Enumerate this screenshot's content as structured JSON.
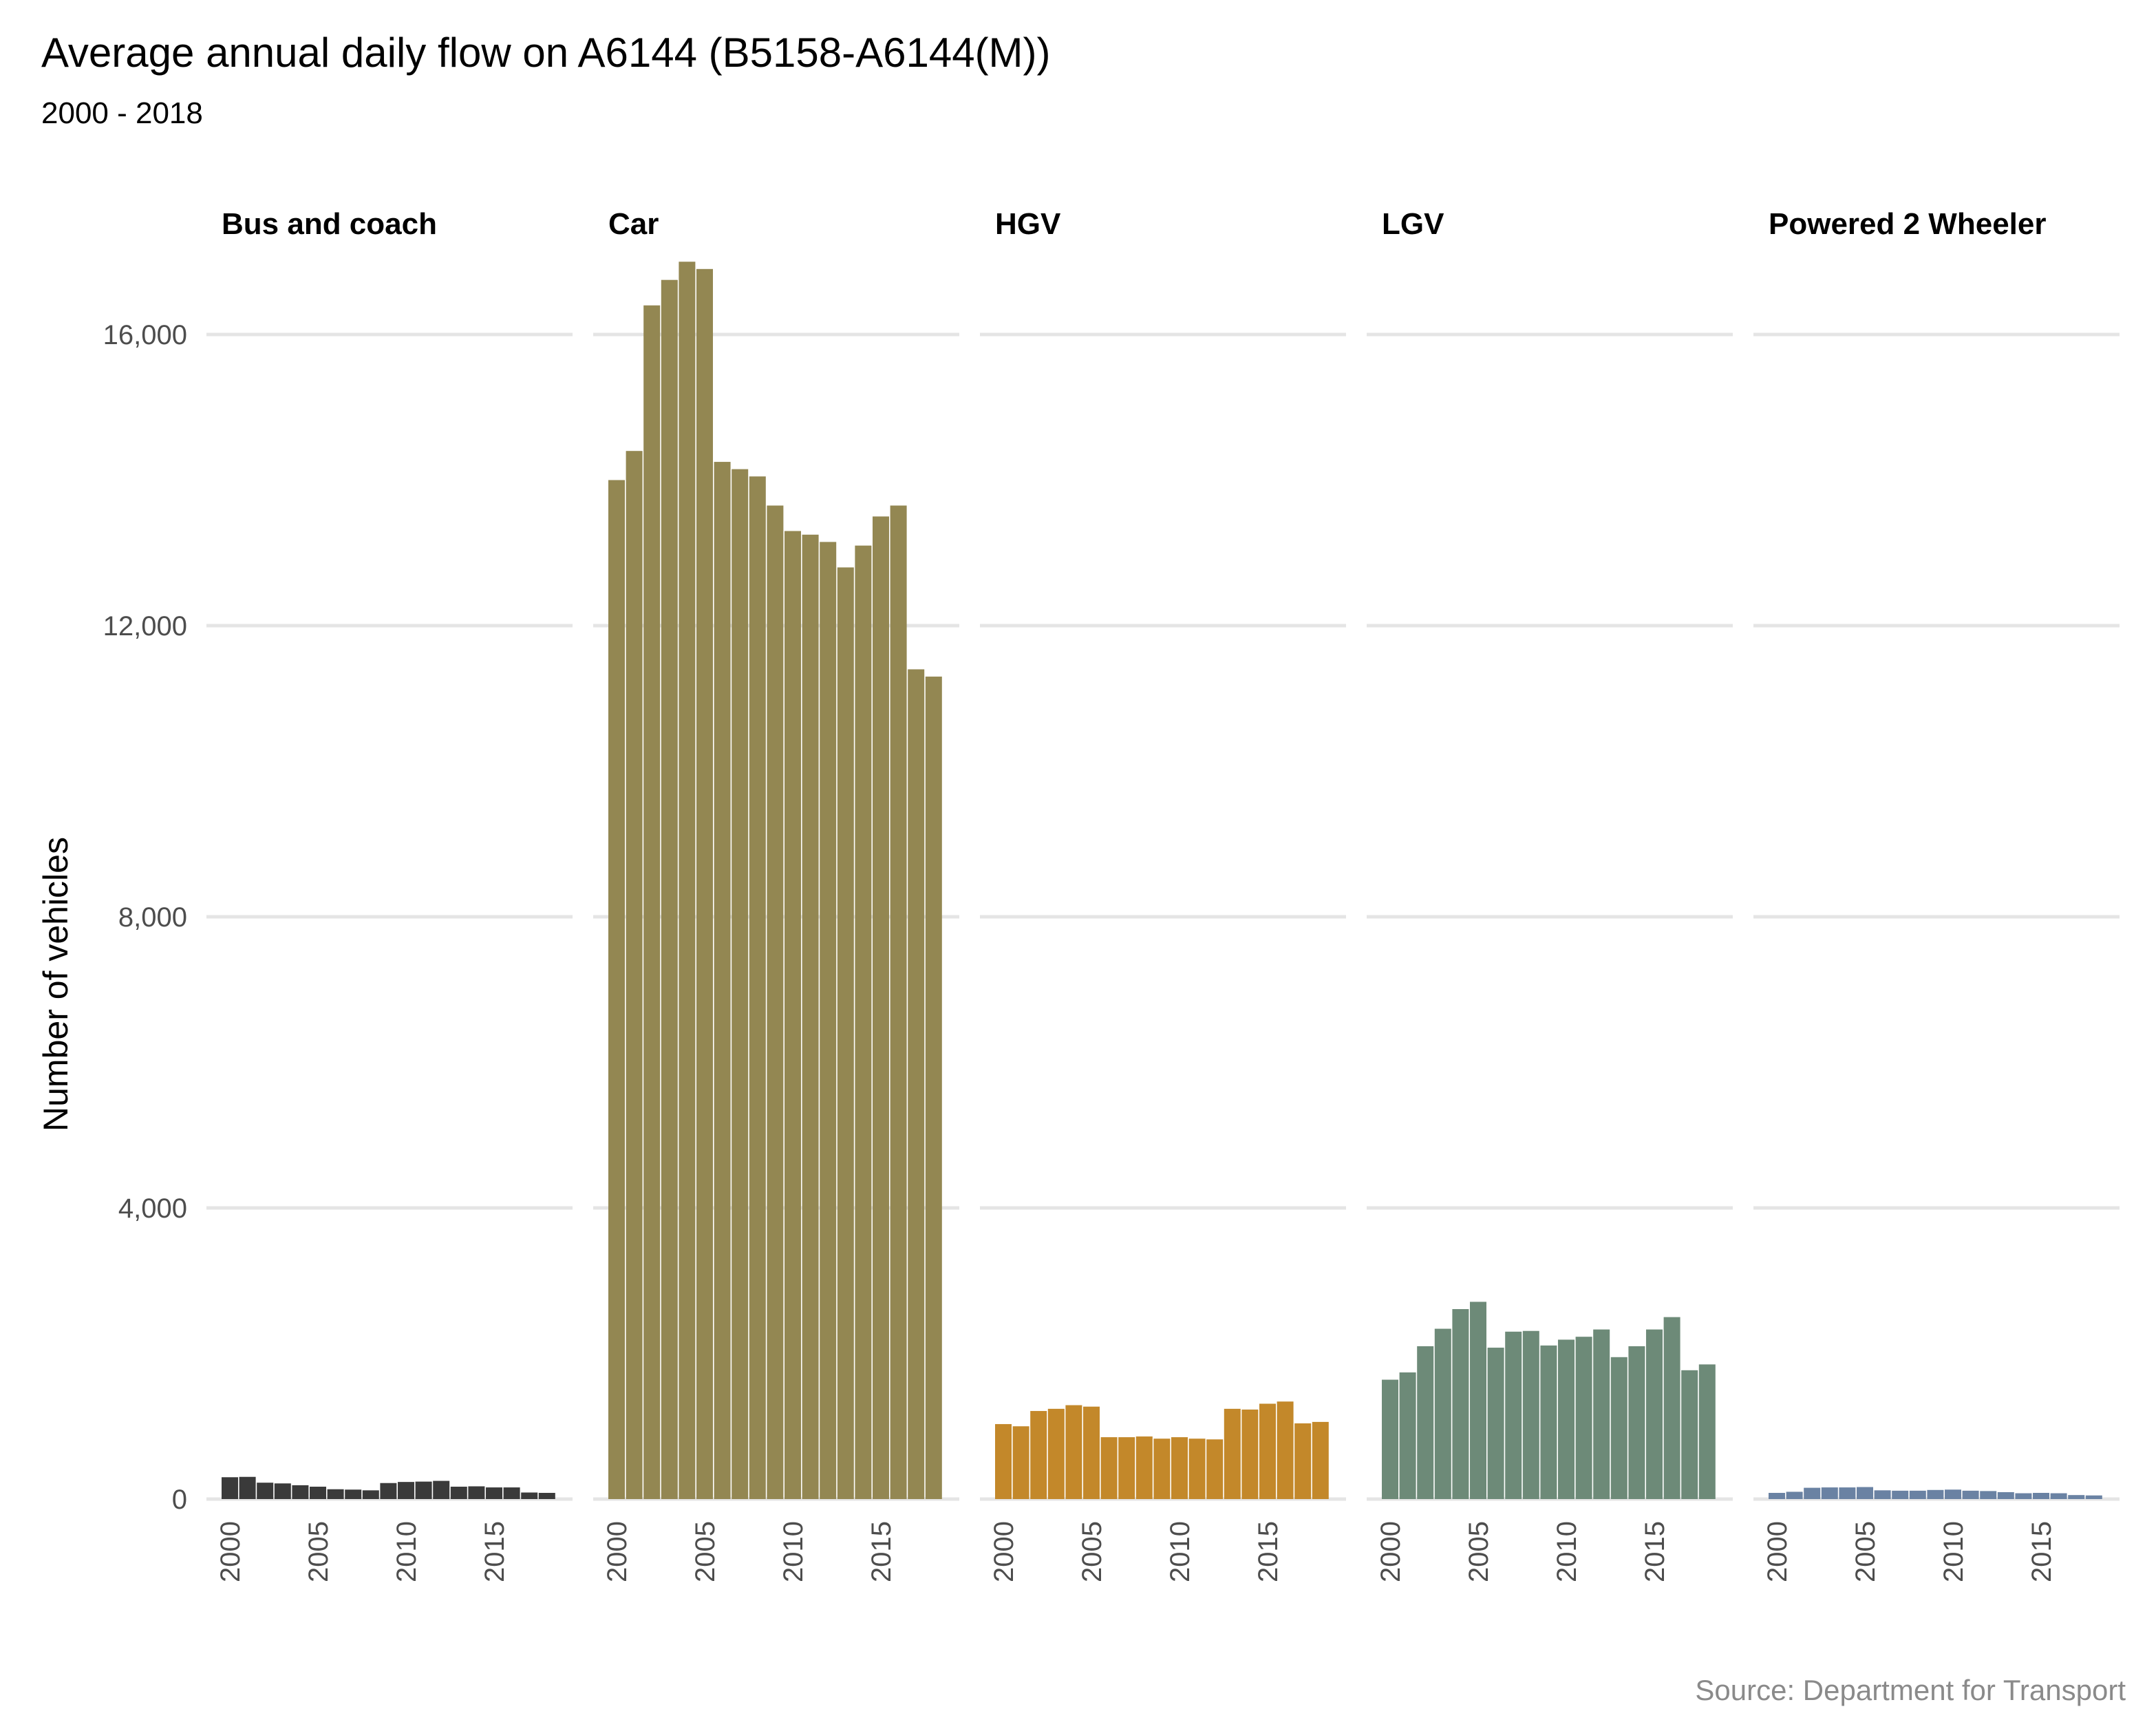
{
  "title": "Average annual daily flow on A6144 (B5158-A6144(M))",
  "subtitle": "2000 - 2018",
  "caption": "Source: Department for Transport",
  "chart_data": {
    "type": "bar",
    "facet_by": "vehicle type",
    "title": "Average annual daily flow on A6144 (B5158-A6144(M))",
    "subtitle": "2000 - 2018",
    "ylabel": "Number of vehicles",
    "xlabel": "",
    "ylim": [
      0,
      17000
    ],
    "y_ticks": [
      0,
      4000,
      8000,
      12000,
      16000
    ],
    "y_tick_labels": [
      "0",
      "4,000",
      "8,000",
      "12,000",
      "16,000"
    ],
    "x": [
      2000,
      2001,
      2002,
      2003,
      2004,
      2005,
      2006,
      2007,
      2008,
      2009,
      2010,
      2011,
      2012,
      2013,
      2014,
      2015,
      2016,
      2017,
      2018
    ],
    "x_ticks": [
      2000,
      2005,
      2010,
      2015
    ],
    "x_tick_labels": [
      "2000",
      "2005",
      "2010",
      "2015"
    ],
    "grid": true,
    "legend": "none",
    "panels": [
      {
        "name": "Bus and coach",
        "color": "#3a3a3a",
        "values": [
          300,
          305,
          225,
          215,
          190,
          170,
          135,
          130,
          120,
          220,
          235,
          240,
          250,
          170,
          175,
          160,
          160,
          90,
          85
        ]
      },
      {
        "name": "Car",
        "color": "#938752",
        "values": [
          14000,
          14400,
          16400,
          16750,
          17000,
          16900,
          14250,
          14150,
          14050,
          13650,
          13300,
          13250,
          13150,
          12800,
          13100,
          13500,
          13650,
          11400,
          11300
        ]
      },
      {
        "name": "HGV",
        "color": "#c3882a",
        "values": [
          1030,
          1000,
          1210,
          1240,
          1290,
          1270,
          850,
          850,
          860,
          830,
          850,
          830,
          820,
          1240,
          1230,
          1310,
          1340,
          1040,
          1060
        ]
      },
      {
        "name": "LGV",
        "color": "#6d8a78",
        "values": [
          1640,
          1740,
          2100,
          2340,
          2610,
          2710,
          2080,
          2300,
          2310,
          2110,
          2190,
          2230,
          2330,
          1950,
          2100,
          2330,
          2500,
          1770,
          1850
        ]
      },
      {
        "name": "Powered 2 Wheeler",
        "color": "#6a82a3",
        "values": [
          85,
          100,
          155,
          160,
          160,
          165,
          120,
          115,
          115,
          125,
          130,
          115,
          110,
          95,
          80,
          85,
          80,
          55,
          50
        ]
      }
    ]
  }
}
